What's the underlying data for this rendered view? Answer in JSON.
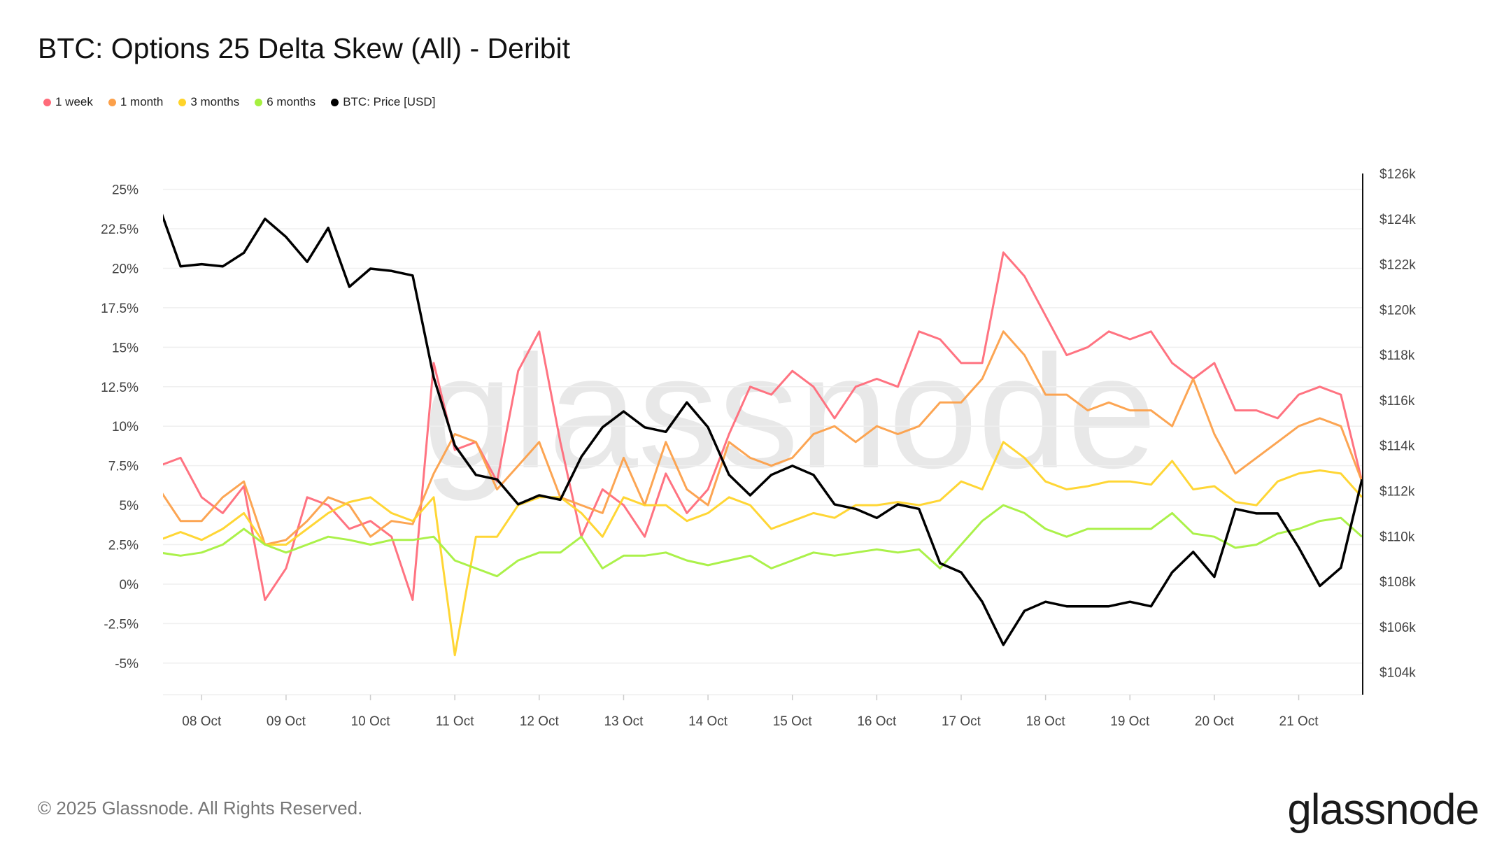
{
  "header": {
    "title": "BTC: Options 25 Delta Skew (All) - Deribit"
  },
  "legend": [
    {
      "label": "1 week",
      "color": "#ff6b7a"
    },
    {
      "label": "1 month",
      "color": "#fca04a"
    },
    {
      "label": "3 months",
      "color": "#ffd42a"
    },
    {
      "label": "6 months",
      "color": "#a6f040"
    },
    {
      "label": "BTC: Price [USD]",
      "color": "#000000"
    }
  ],
  "footer": {
    "copyright": "© 2025 Glassnode. All Rights Reserved.",
    "logo": "glassnode"
  },
  "watermark": "glassnode",
  "chart_data": {
    "type": "line",
    "title": "BTC: Options 25 Delta Skew (All) - Deribit",
    "xlim": [
      "2025-10-07T13:00",
      "2025-10-21T18:00"
    ],
    "ylim": [
      -7,
      26
    ],
    "y2lim": [
      103,
      126
    ],
    "grid": true,
    "legend_position": "top-left",
    "x_ticks": [
      "08 Oct",
      "09 Oct",
      "10 Oct",
      "11 Oct",
      "12 Oct",
      "13 Oct",
      "14 Oct",
      "15 Oct",
      "16 Oct",
      "17 Oct",
      "18 Oct",
      "19 Oct",
      "20 Oct",
      "21 Oct"
    ],
    "x_tick_dates": [
      "2025-10-08",
      "2025-10-09",
      "2025-10-10",
      "2025-10-11",
      "2025-10-12",
      "2025-10-13",
      "2025-10-14",
      "2025-10-15",
      "2025-10-16",
      "2025-10-17",
      "2025-10-18",
      "2025-10-19",
      "2025-10-20",
      "2025-10-21"
    ],
    "y_ticks": [
      25,
      22.5,
      20,
      17.5,
      15,
      12.5,
      10,
      7.5,
      5,
      2.5,
      0,
      -2.5,
      -5
    ],
    "y_tick_labels": [
      "25%",
      "22.5%",
      "20%",
      "17.5%",
      "15%",
      "12.5%",
      "10%",
      "7.5%",
      "5%",
      "2.5%",
      "0%",
      "-2.5%",
      "-5%"
    ],
    "y2_ticks": [
      126,
      124,
      122,
      120,
      118,
      116,
      114,
      112,
      110,
      108,
      106,
      104
    ],
    "y2_tick_labels": [
      "$126k",
      "$124k",
      "$122k",
      "$120k",
      "$118k",
      "$116k",
      "$114k",
      "$112k",
      "$110k",
      "$108k",
      "$106k",
      "$104k"
    ],
    "x": [
      "2025-10-07T12:00",
      "2025-10-07T18:00",
      "2025-10-08T00:00",
      "2025-10-08T06:00",
      "2025-10-08T12:00",
      "2025-10-08T18:00",
      "2025-10-09T00:00",
      "2025-10-09T06:00",
      "2025-10-09T12:00",
      "2025-10-09T18:00",
      "2025-10-10T00:00",
      "2025-10-10T06:00",
      "2025-10-10T12:00",
      "2025-10-10T18:00",
      "2025-10-11T00:00",
      "2025-10-11T06:00",
      "2025-10-11T12:00",
      "2025-10-11T18:00",
      "2025-10-12T00:00",
      "2025-10-12T06:00",
      "2025-10-12T12:00",
      "2025-10-12T18:00",
      "2025-10-13T00:00",
      "2025-10-13T06:00",
      "2025-10-13T12:00",
      "2025-10-13T18:00",
      "2025-10-14T00:00",
      "2025-10-14T06:00",
      "2025-10-14T12:00",
      "2025-10-14T18:00",
      "2025-10-15T00:00",
      "2025-10-15T06:00",
      "2025-10-15T12:00",
      "2025-10-15T18:00",
      "2025-10-16T00:00",
      "2025-10-16T06:00",
      "2025-10-16T12:00",
      "2025-10-16T18:00",
      "2025-10-17T00:00",
      "2025-10-17T06:00",
      "2025-10-17T12:00",
      "2025-10-17T18:00",
      "2025-10-18T00:00",
      "2025-10-18T06:00",
      "2025-10-18T12:00",
      "2025-10-18T18:00",
      "2025-10-19T00:00",
      "2025-10-19T06:00",
      "2025-10-19T12:00",
      "2025-10-19T18:00",
      "2025-10-20T00:00",
      "2025-10-20T06:00",
      "2025-10-20T12:00",
      "2025-10-20T18:00",
      "2025-10-21T00:00",
      "2025-10-21T06:00",
      "2025-10-21T12:00",
      "2025-10-21T18:00"
    ],
    "series": [
      {
        "name": "1 week",
        "axis": "left",
        "color": "#ff6b7a",
        "values": [
          7.5,
          8,
          5.5,
          4.5,
          6.2,
          -1,
          1,
          5.5,
          5,
          3.5,
          4,
          3,
          -1,
          14,
          8.5,
          9,
          6.5,
          13.5,
          16,
          9,
          3,
          6,
          5,
          3,
          7,
          4.5,
          6,
          9.5,
          12.5,
          12,
          13.5,
          12.5,
          10.5,
          12.5,
          13,
          12.5,
          16,
          15.5,
          14,
          14,
          21,
          19.5,
          17,
          14.5,
          15,
          16,
          15.5,
          16,
          14,
          13,
          14,
          11,
          11,
          10.5,
          12,
          12.5,
          12,
          6.5
        ]
      },
      {
        "name": "1 month",
        "axis": "left",
        "color": "#fca04a",
        "values": [
          6,
          4,
          4,
          5.5,
          6.5,
          2.5,
          2.8,
          4,
          5.5,
          5,
          3,
          4,
          3.8,
          7,
          9.5,
          9,
          6,
          7.5,
          9,
          5.5,
          5,
          4.5,
          8,
          5,
          9,
          6,
          5,
          9,
          8,
          7.5,
          8,
          9.5,
          10,
          9,
          10,
          9.5,
          10,
          11.5,
          11.5,
          13,
          16,
          14.5,
          12,
          12,
          11,
          11.5,
          11,
          11,
          10,
          13,
          9.5,
          7,
          8,
          9,
          10,
          10.5,
          10,
          6.5
        ]
      },
      {
        "name": "3 months",
        "axis": "left",
        "color": "#ffd42a",
        "values": [
          2.8,
          3.3,
          2.8,
          3.5,
          4.5,
          2.5,
          2.5,
          3.5,
          4.5,
          5.2,
          5.5,
          4.5,
          4,
          5.5,
          -4.5,
          3,
          3,
          5,
          5.5,
          5.5,
          4.5,
          3,
          5.5,
          5,
          5,
          4,
          4.5,
          5.5,
          5,
          3.5,
          4,
          4.5,
          4.2,
          5,
          5,
          5.2,
          5,
          5.3,
          6.5,
          6,
          9,
          8,
          6.5,
          6,
          6.2,
          6.5,
          6.5,
          6.3,
          7.8,
          6,
          6.2,
          5.2,
          5,
          6.5,
          7,
          7.2,
          7,
          5.5
        ]
      },
      {
        "name": "6 months",
        "axis": "left",
        "color": "#a6f040",
        "values": [
          2,
          1.8,
          2,
          2.5,
          3.5,
          2.5,
          2,
          2.5,
          3,
          2.8,
          2.5,
          2.8,
          2.8,
          3,
          1.5,
          1,
          0.5,
          1.5,
          2,
          2,
          3,
          1,
          1.8,
          1.8,
          2,
          1.5,
          1.2,
          1.5,
          1.8,
          1,
          1.5,
          2,
          1.8,
          2,
          2.2,
          2,
          2.2,
          1,
          2.5,
          4,
          5,
          4.5,
          3.5,
          3,
          3.5,
          3.5,
          3.5,
          3.5,
          4.5,
          3.2,
          3,
          2.3,
          2.5,
          3.2,
          3.5,
          4,
          4.2,
          3
        ]
      },
      {
        "name": "BTC: Price [USD]",
        "axis": "right",
        "color": "#000000",
        "values": [
          124.5,
          121.9,
          122,
          121.9,
          122.5,
          124,
          123.2,
          122.1,
          123.6,
          121,
          121.8,
          121.7,
          121.5,
          117,
          114,
          112.7,
          112.5,
          111.4,
          111.8,
          111.6,
          113.5,
          114.8,
          115.5,
          114.8,
          114.6,
          115.9,
          114.8,
          112.7,
          111.8,
          112.7,
          113.1,
          112.7,
          111.4,
          111.2,
          110.8,
          111.4,
          111.2,
          108.8,
          108.4,
          107.1,
          105.2,
          106.7,
          107.1,
          106.9,
          106.9,
          106.9,
          107.1,
          106.9,
          108.4,
          109.3,
          108.2,
          111.2,
          111,
          111,
          109.5,
          107.8,
          108.6,
          112.5
        ]
      }
    ]
  }
}
